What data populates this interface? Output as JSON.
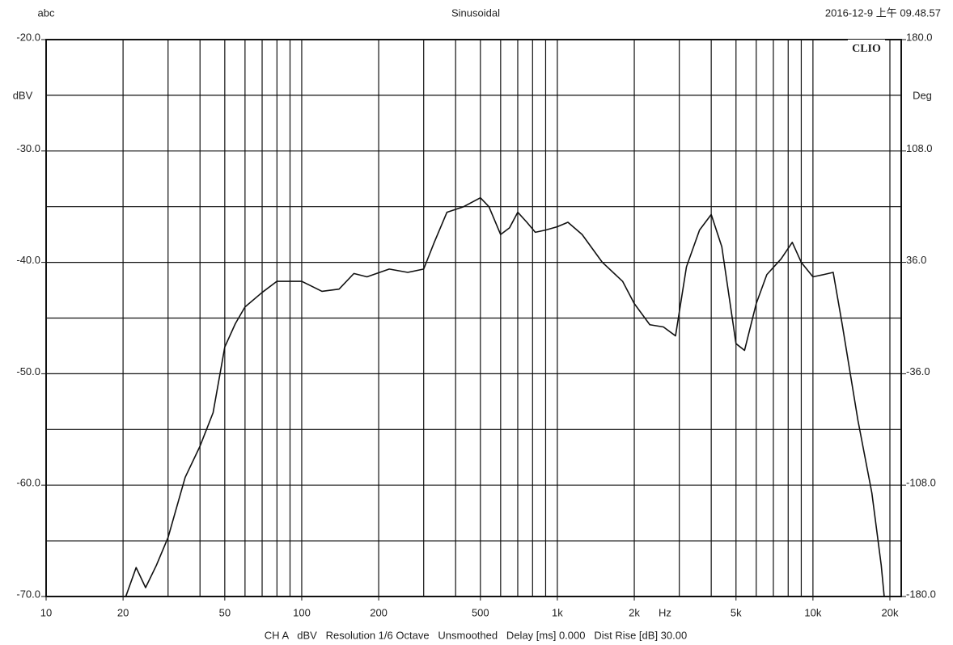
{
  "chart_data": {
    "type": "line",
    "header_left": "abc",
    "title": "Sinusoidal",
    "header_right": "2016-12-9 上午 09.48.57",
    "logo": "CLIO",
    "footer": "CH A   dBV   Resolution 1/6 Octave   Unsmoothed   Delay [ms] 0.000   Dist Rise [dB] 30.00",
    "xlabel": "Hz",
    "ylabel": "dBV",
    "y2label": "Deg",
    "xscale": "log",
    "xlim": [
      10,
      20000
    ],
    "ylim": [
      -70,
      -20
    ],
    "y2lim": [
      -180,
      180
    ],
    "xticks": [
      10,
      20,
      50,
      100,
      200,
      500,
      {
        "value": 1000,
        "label": "1k"
      },
      {
        "value": 2000,
        "label": "2k"
      },
      {
        "value": 5000,
        "label": "5k"
      },
      {
        "value": 10000,
        "label": "10k"
      },
      {
        "value": 20000,
        "label": "20k"
      }
    ],
    "xgrid": [
      20,
      30,
      40,
      50,
      60,
      70,
      80,
      90,
      100,
      200,
      300,
      400,
      500,
      600,
      700,
      800,
      900,
      1000,
      2000,
      3000,
      4000,
      5000,
      6000,
      7000,
      8000,
      9000,
      10000,
      20000
    ],
    "yticks": [
      {
        "value": -20,
        "label": "-20.0"
      },
      {
        "value": -30,
        "label": "-30.0"
      },
      {
        "value": -40,
        "label": "-40.0"
      },
      {
        "value": -50,
        "label": "-50.0"
      },
      {
        "value": -60,
        "label": "-60.0"
      },
      {
        "value": -70,
        "label": "-70.0"
      }
    ],
    "ygrid": [
      -25,
      -30,
      -35,
      -40,
      -45,
      -50,
      -55,
      -60,
      -65
    ],
    "y2ticks": [
      {
        "value": 180,
        "label": "180.0"
      },
      {
        "value": 108,
        "label": "108.0"
      },
      {
        "value": 36,
        "label": "36.0"
      },
      {
        "value": -36,
        "label": "-36.0"
      },
      {
        "value": -108,
        "label": "-108.0"
      },
      {
        "value": -180,
        "label": "-180.0"
      }
    ],
    "grid": true,
    "x": [
      20.5,
      22.5,
      24.5,
      27,
      30,
      35,
      40,
      45,
      50,
      55,
      60,
      70,
      80,
      100,
      120,
      140,
      160,
      180,
      220,
      260,
      300,
      330,
      370,
      430,
      500,
      540,
      600,
      650,
      700,
      760,
      820,
      900,
      1000,
      1100,
      1250,
      1500,
      1800,
      2000,
      2300,
      2600,
      2900,
      3200,
      3600,
      4000,
      4400,
      5000,
      5400,
      6000,
      6600,
      7500,
      8300,
      9000,
      10000,
      11000,
      12000,
      13000,
      15000,
      17000,
      18500,
      19000
    ],
    "series": [
      {
        "color": "#111111",
        "values": [
          -70,
          -67.4,
          -69.2,
          -67.2,
          -64.7,
          -59.3,
          -56.5,
          -53.5,
          -47.6,
          -45.5,
          -44,
          -42.7,
          -41.7,
          -41.7,
          -42.6,
          -42.4,
          -41,
          -41.3,
          -40.6,
          -40.9,
          -40.6,
          -38.2,
          -35.5,
          -35,
          -34.2,
          -35,
          -37.5,
          -36.9,
          -35.5,
          -36.4,
          -37.3,
          -37.1,
          -36.8,
          -36.4,
          -37.5,
          -40,
          -41.7,
          -43.7,
          -45.6,
          -45.8,
          -46.6,
          -40.4,
          -37.1,
          -35.7,
          -38.6,
          -47.3,
          -47.9,
          -43.7,
          -41.1,
          -39.7,
          -38.2,
          -40,
          -41.3,
          -41.1,
          -40.9,
          -45.5,
          -54.2,
          -60.7,
          -67.2,
          -70
        ]
      }
    ]
  }
}
